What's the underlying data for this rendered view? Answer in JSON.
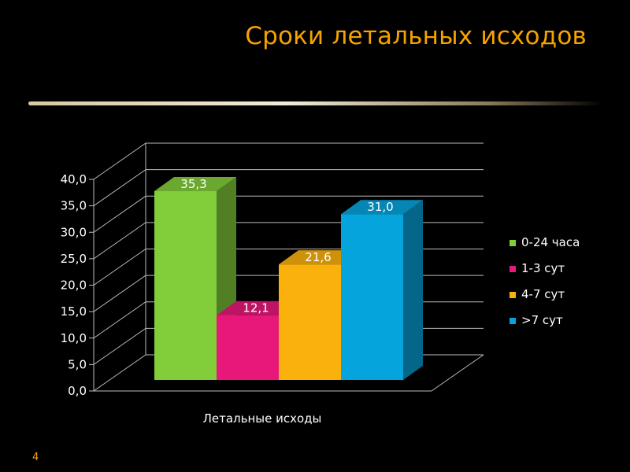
{
  "slide": {
    "title": "Сроки летальных исходов",
    "page_number": "4",
    "title_color": "#f5a300",
    "background": "#000000"
  },
  "chart_data": {
    "type": "bar",
    "variant": "3d-clustered",
    "title": "",
    "xlabel": "",
    "ylabel": "",
    "category_label": "Летальные исходы",
    "categories": [
      "Летальные исходы"
    ],
    "ylim": [
      0,
      40
    ],
    "ytick_step": 5,
    "yticks": [
      "0,0",
      "5,0",
      "10,0",
      "15,0",
      "20,0",
      "25,0",
      "30,0",
      "35,0",
      "40,0"
    ],
    "grid": true,
    "legend_position": "right",
    "series": [
      {
        "name": "0-24 часа",
        "values": [
          35.3
        ],
        "label": "35,3",
        "color": "#82cd3a"
      },
      {
        "name": "1-3 сут",
        "values": [
          12.1
        ],
        "label": "12,1",
        "color": "#e8187a"
      },
      {
        "name": "4-7 сут",
        "values": [
          21.6
        ],
        "label": "21,6",
        "color": "#fbb10c"
      },
      {
        "name": ">7 сут",
        "values": [
          31.0
        ],
        "label": "31,0",
        "color": "#06a4dc"
      }
    ]
  }
}
